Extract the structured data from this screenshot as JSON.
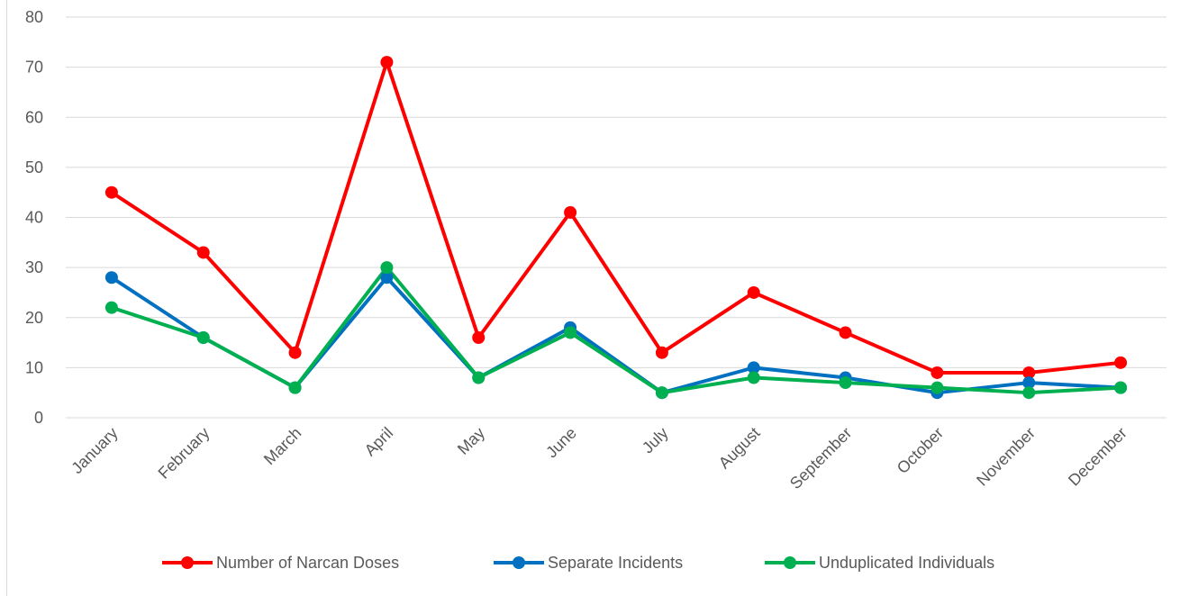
{
  "chart_data": {
    "type": "line",
    "title": "",
    "xlabel": "",
    "ylabel": "",
    "categories": [
      "January",
      "February",
      "March",
      "April",
      "May",
      "June",
      "July",
      "August",
      "September",
      "October",
      "November",
      "December"
    ],
    "ylim": [
      0,
      80
    ],
    "yticks": [
      0,
      10,
      20,
      30,
      40,
      50,
      60,
      70,
      80
    ],
    "grid": true,
    "legend_position": "bottom",
    "series": [
      {
        "name": "Number of Narcan Doses",
        "color": "#ff0000",
        "values": [
          45,
          33,
          13,
          71,
          16,
          41,
          13,
          25,
          17,
          9,
          9,
          11
        ]
      },
      {
        "name": "Separate Incidents",
        "color": "#0070c0",
        "values": [
          28,
          16,
          6,
          28,
          8,
          18,
          5,
          10,
          8,
          5,
          7,
          6
        ]
      },
      {
        "name": "Unduplicated Individuals",
        "color": "#00b050",
        "values": [
          22,
          16,
          6,
          30,
          8,
          17,
          5,
          8,
          7,
          6,
          5,
          6
        ]
      }
    ]
  }
}
